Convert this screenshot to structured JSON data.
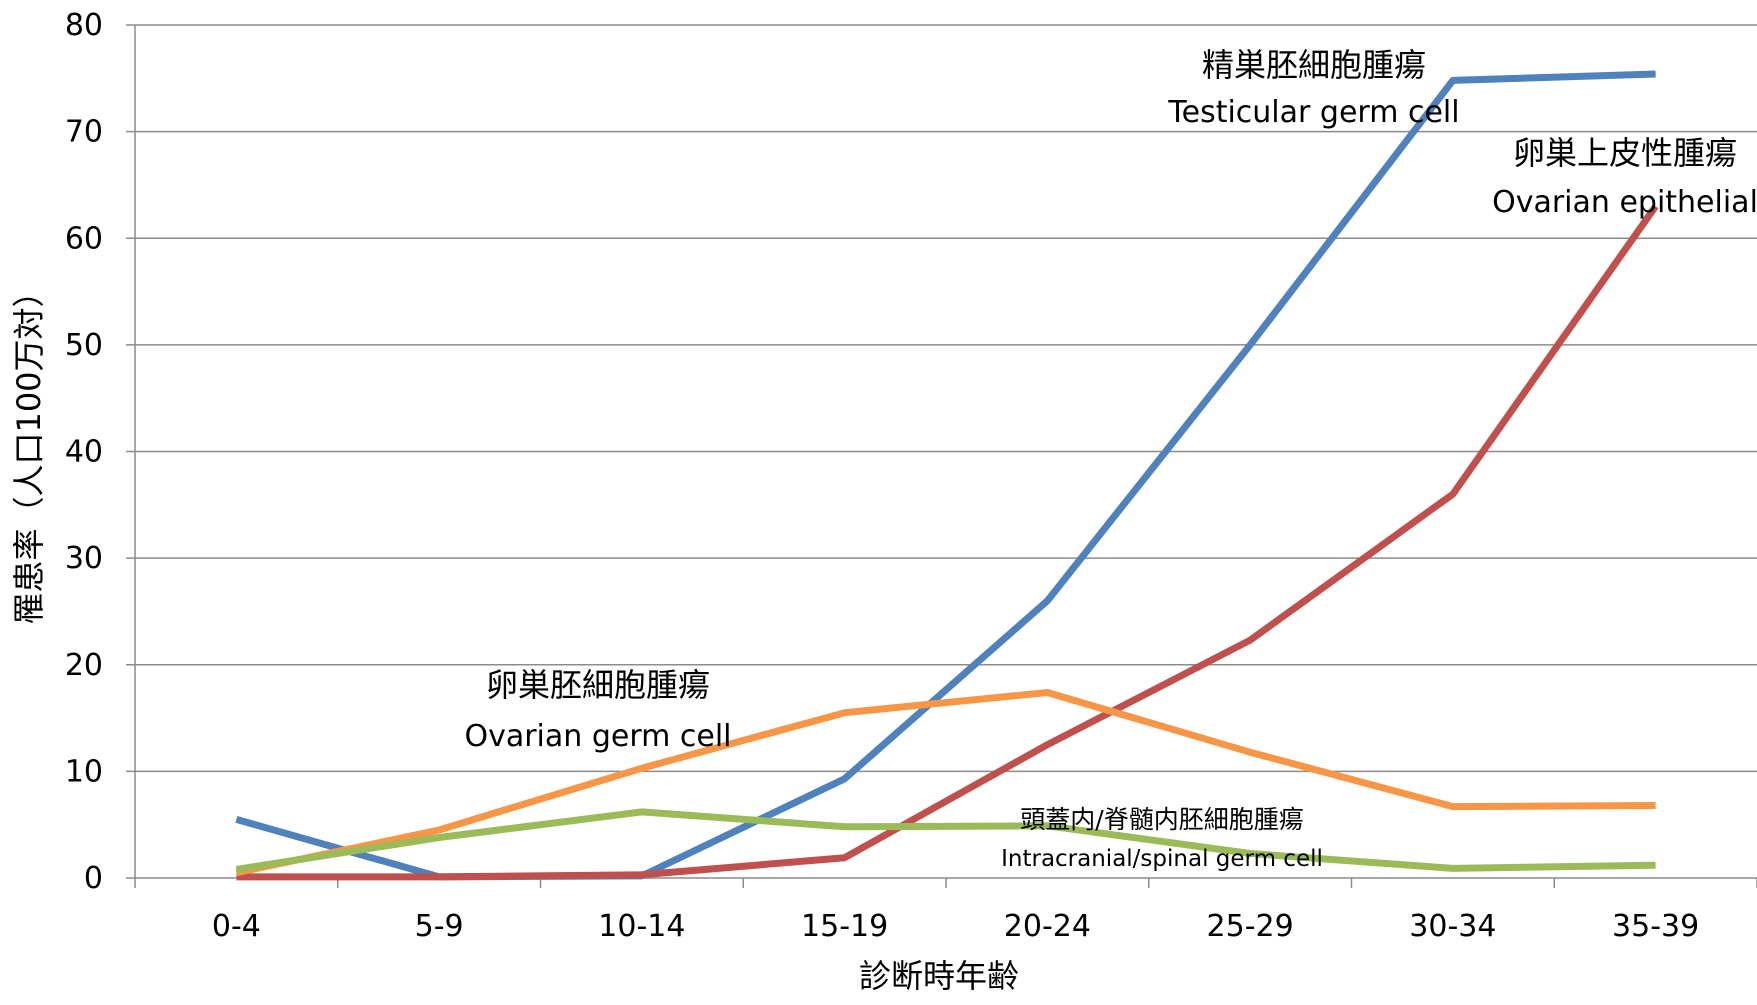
{
  "chart_data": {
    "type": "line",
    "categories": [
      "0-4",
      "5-9",
      "10-14",
      "15-19",
      "20-24",
      "25-29",
      "30-34",
      "35-39"
    ],
    "series": [
      {
        "key": "testicular",
        "color": "#4F81BD",
        "values": [
          5.5,
          0.1,
          0.2,
          9.3,
          26,
          50,
          74.8,
          75.4
        ]
      },
      {
        "key": "ovarian_epithelial",
        "color": "#C0504D",
        "values": [
          0.1,
          0.1,
          0.3,
          1.9,
          12.5,
          22.3,
          36,
          63
        ]
      },
      {
        "key": "ovarian_germ",
        "color": "#F79646",
        "values": [
          0.5,
          4.5,
          10.3,
          15.5,
          17.4,
          11.8,
          6.7,
          6.8
        ]
      },
      {
        "key": "intracranial",
        "color": "#9BBB59",
        "values": [
          0.8,
          3.8,
          6.2,
          4.8,
          4.9,
          2.3,
          0.9,
          1.2
        ]
      }
    ],
    "annotations": [
      {
        "series": "testicular",
        "jp": "精巣胚細胞腫瘍",
        "en": "Testicular germ cell"
      },
      {
        "series": "ovarian_epithelial",
        "jp": "卵巣上皮性腫瘍",
        "en": "Ovarian epithelial"
      },
      {
        "series": "ovarian_germ",
        "jp": "卵巣胚細胞腫瘍",
        "en": "Ovarian germ cell"
      },
      {
        "series": "intracranial",
        "jp": "頭蓋内/脊髄内胚細胞腫瘍",
        "en": "Intracranial/spinal germ cell"
      }
    ],
    "xlabel": "診断時年齢",
    "ylabel": "罹患率（人口100万対）",
    "ylim": [
      0,
      80
    ],
    "yticks": [
      0,
      10,
      20,
      30,
      40,
      50,
      60,
      70,
      80
    ],
    "grid": true,
    "legend": "none"
  }
}
